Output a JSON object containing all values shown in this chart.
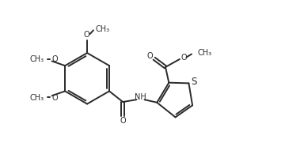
{
  "bg_color": "#ffffff",
  "line_color": "#2a2a2a",
  "line_width": 1.4,
  "font_size": 7.0,
  "xlim": [
    0,
    10
  ],
  "ylim": [
    0,
    5.4
  ]
}
